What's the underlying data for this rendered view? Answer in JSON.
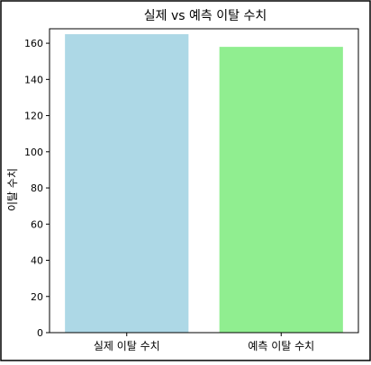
{
  "chart_data": {
    "type": "bar",
    "title": "실제 vs 예측 이탈 수치",
    "xlabel": "",
    "ylabel": "이탈 수치",
    "categories": [
      "실제 이탈 수치",
      "예측 이탈 수치"
    ],
    "values": [
      165,
      158
    ],
    "colors": [
      "#add8e6",
      "#90ee90"
    ],
    "ylim": [
      0,
      168
    ],
    "yticks": [
      0,
      20,
      40,
      60,
      80,
      100,
      120,
      140,
      160
    ],
    "grid": false,
    "legend": "none"
  }
}
